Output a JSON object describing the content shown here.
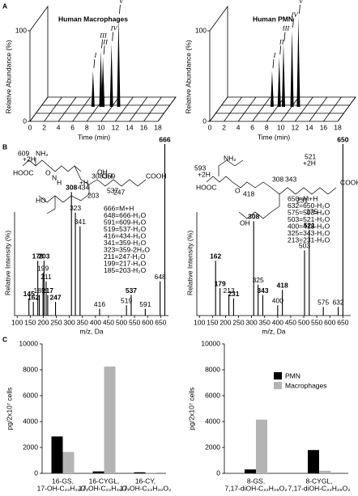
{
  "panel_labels": [
    "A",
    "B",
    "C"
  ],
  "chart_data": [
    {
      "type": "peaks3d",
      "title": "Human Macrophages",
      "xlabel": "Time (min)",
      "ylabel": "Relative Abundance (%)",
      "xlim": [
        0,
        18
      ],
      "xticks": [
        0,
        2,
        4,
        6,
        8,
        10,
        12,
        14,
        16,
        18
      ],
      "ylim": [
        0,
        100
      ],
      "yticks": [
        0,
        100
      ],
      "x": [
        7.5,
        8.6,
        8.9,
        10.1,
        11.1
      ],
      "values": [
        40,
        62,
        55,
        70,
        100
      ],
      "labels": [
        "I",
        "III",
        "II",
        "IV",
        "V"
      ]
    },
    {
      "type": "peaks3d",
      "title": "Human PMN",
      "xlabel": "Time (min)",
      "ylabel": "Relative Abundance (%)",
      "xlim": [
        0,
        18
      ],
      "xticks": [
        0,
        2,
        4,
        6,
        8,
        10,
        12,
        14,
        16,
        18
      ],
      "ylim": [
        0,
        100
      ],
      "yticks": [
        0,
        100
      ],
      "x": [
        7.4,
        8.4,
        9.0,
        10.2,
        11.1
      ],
      "values": [
        40,
        55,
        70,
        85,
        100
      ],
      "labels": [
        "I",
        "II",
        "III",
        "IV",
        "V"
      ]
    },
    {
      "type": "spectrum",
      "xlabel": "m/z, Da",
      "ylabel": "Relative Intensity (%)",
      "xlim": [
        90,
        680
      ],
      "xticks": [
        100,
        150,
        200,
        250,
        300,
        350,
        400,
        450,
        500,
        550,
        600,
        650
      ],
      "ylim": [
        0,
        100
      ],
      "x": [
        145,
        162,
        179,
        185,
        199,
        203,
        211,
        217,
        247,
        308,
        323,
        341,
        416,
        519,
        537,
        591,
        648,
        666
      ],
      "values": [
        10,
        8,
        32,
        12,
        25,
        32,
        20,
        12,
        8,
        72,
        60,
        52,
        4,
        6,
        12,
        4,
        20,
        100
      ],
      "bold": [
        true,
        true,
        true,
        false,
        false,
        true,
        false,
        true,
        true,
        true,
        false,
        false,
        false,
        false,
        true,
        false,
        false,
        true
      ],
      "annotations": [
        "666=M+H",
        "648=666-H₂O",
        "591=609-H₂O",
        "519=537-H₂O",
        "416=434-H₂O",
        "341=359-H₂O",
        "323=359-2H₂O",
        "211=247-H₂O",
        "199=217-H₂O",
        "185=203-H₂O"
      ],
      "structure_labels": [
        "609",
        "+2H",
        "HOOC",
        "NH₂",
        "O",
        "N",
        "H",
        "308",
        "359",
        "OH",
        "434",
        "537",
        "247",
        "203",
        "+H",
        "COOH",
        "HO",
        "OH"
      ]
    },
    {
      "type": "spectrum",
      "xlabel": "m/z, Da",
      "ylabel": "Relative Intensity (%)",
      "xlim": [
        90,
        680
      ],
      "xticks": [
        100,
        150,
        200,
        250,
        300,
        350,
        400,
        450,
        500,
        550,
        600,
        650
      ],
      "ylim": [
        0,
        100
      ],
      "x": [
        162,
        179,
        213,
        231,
        308,
        325,
        343,
        400,
        418,
        503,
        521,
        575,
        632,
        650
      ],
      "values": [
        32,
        16,
        12,
        10,
        55,
        18,
        12,
        6,
        15,
        38,
        50,
        5,
        5,
        100
      ],
      "bold": [
        true,
        true,
        false,
        true,
        true,
        false,
        true,
        false,
        true,
        false,
        true,
        false,
        false,
        true
      ],
      "annotations": [
        "650=M+H",
        "632=650-H₂O",
        "575=593-H₂O",
        "503=521-H₂O",
        "400=418-H₂O",
        "325=343-H₂O",
        "213=231-H₂O"
      ],
      "structure_labels": [
        "593",
        "+2H",
        "HOOC",
        "NH₂",
        "O",
        "521",
        "+2H",
        "308",
        "343",
        "418",
        "231",
        "275",
        "OH",
        "COOH"
      ]
    },
    {
      "type": "bar",
      "ylabel": "pg/2x10⁷ cells",
      "ylim": [
        0,
        10000
      ],
      "yticks": [
        0,
        2000,
        4000,
        6000,
        8000,
        10000
      ],
      "legend": false,
      "categories": [
        [
          "16-GS,",
          "17-OH-C₂₂H₃₀O₂"
        ],
        [
          "16-CYGL,",
          "17-OH-C₂₂H₃₀O₂"
        ],
        [
          "16-CY,",
          "17-OH-C₂₂H₃₀O₂"
        ]
      ],
      "series": [
        {
          "color": "#000000",
          "values": [
            2850,
            150,
            80
          ]
        },
        {
          "color": "#b4b4b4",
          "values": [
            1650,
            8250,
            50
          ]
        }
      ]
    },
    {
      "type": "bar",
      "ylabel": "pg/2x10⁷ cells",
      "ylim": [
        0,
        10000
      ],
      "yticks": [
        0,
        2000,
        4000,
        6000,
        8000,
        10000
      ],
      "legend": "upper right",
      "categories": [
        [
          "8-GS,",
          "7,17-diOH-C₂₂H₂₉O₂"
        ],
        [
          "8-CYGL,",
          "7,17-diOH-C₂₂H₂₉O₂"
        ]
      ],
      "series": [
        {
          "name": "PMN",
          "color": "#000000",
          "values": [
            300,
            1800
          ]
        },
        {
          "name": "Macrophages",
          "color": "#b4b4b4",
          "values": [
            4150,
            200
          ]
        }
      ]
    }
  ]
}
